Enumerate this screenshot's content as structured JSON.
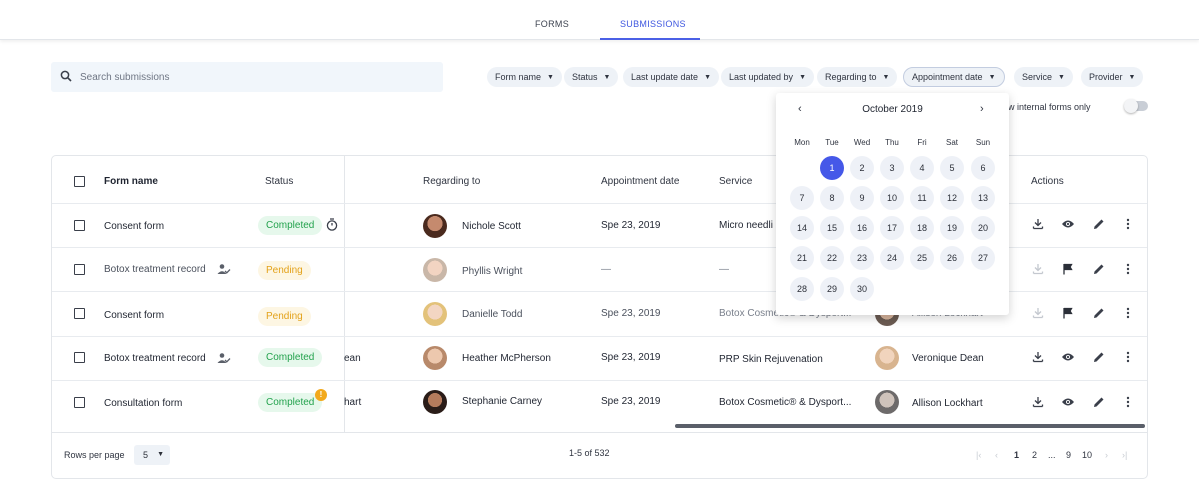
{
  "tabs": [
    {
      "label": "FORMS",
      "active": false
    },
    {
      "label": "SUBMISSIONS",
      "active": true
    }
  ],
  "search": {
    "placeholder": "Search submissions",
    "icon": "search-icon"
  },
  "filters": [
    {
      "label": "Form name"
    },
    {
      "label": "Status"
    },
    {
      "label": "Last update date"
    },
    {
      "label": "Last updated by"
    },
    {
      "label": "Regarding to"
    },
    {
      "label": "Appointment date",
      "active": true
    },
    {
      "label": "Service"
    },
    {
      "label": "Provider"
    }
  ],
  "internal_toggle": {
    "label": "w internal forms only",
    "on": false
  },
  "table": {
    "headers": {
      "form_name": "Form name",
      "status": "Status",
      "regarding": "Regarding to",
      "appointment_date": "Appointment date",
      "service": "Service",
      "actions": "Actions"
    },
    "rows": [
      {
        "form": "Consent form",
        "status": "Completed",
        "regarding": "Nichole Scott",
        "date": "Spe 23, 2019",
        "service": "Micro needli",
        "provider": "",
        "provider_partial": "",
        "icon": "timer-icon",
        "dim": false
      },
      {
        "form": "Botox treatment record",
        "status": "Pending",
        "regarding": "Phyllis Wright",
        "date": "—",
        "service": "—",
        "provider": "",
        "provider_partial": "",
        "icon": "user-check-icon",
        "dim": true
      },
      {
        "form": "Consent form",
        "status": "Pending",
        "regarding": "Danielle Todd",
        "date": "Spe 23, 2019",
        "service": "Botox Cosmetic® & Dysport...",
        "provider": "Allison Lockhart",
        "provider_partial": "",
        "icon": "",
        "dim": true
      },
      {
        "form": "Botox treatment record",
        "status": "Completed",
        "regarding": "Heather McPherson",
        "date": "Spe 23, 2019",
        "service": "PRP Skin Rejuvenation",
        "provider": "Veronique Dean",
        "provider_partial": "ean",
        "icon": "user-check-icon",
        "dim": false
      },
      {
        "form": "Consultation form",
        "status": "Completed",
        "regarding": "Stephanie Carney",
        "date": "Spe 23, 2019",
        "service": "Botox Cosmetic® & Dysport...",
        "provider": "Allison Lockhart",
        "provider_partial": "hart",
        "icon": "",
        "dim": false,
        "badge_alert": "!"
      }
    ]
  },
  "footer": {
    "rows_per_page_label": "Rows per page",
    "rows_per_page_value": "5",
    "range": "1-5 of 532",
    "pages": [
      "1",
      "2",
      "...",
      "9",
      "10"
    ]
  },
  "calendar": {
    "title": "October 2019",
    "weekdays": [
      "Mon",
      "Tue",
      "Wed",
      "Thu",
      "Fri",
      "Sat",
      "Sun"
    ],
    "selected": "1",
    "days": [
      "1",
      "2",
      "3",
      "4",
      "5",
      "6",
      "7",
      "8",
      "9",
      "10",
      "11",
      "12",
      "13",
      "14",
      "15",
      "16",
      "17",
      "18",
      "19",
      "20",
      "21",
      "22",
      "23",
      "24",
      "25",
      "26",
      "27",
      "28",
      "29",
      "30"
    ]
  },
  "colors": {
    "accent": "#4558e8",
    "completed": "#23a24d",
    "pending": "#e3a21a",
    "alert": "#f2a91c"
  }
}
